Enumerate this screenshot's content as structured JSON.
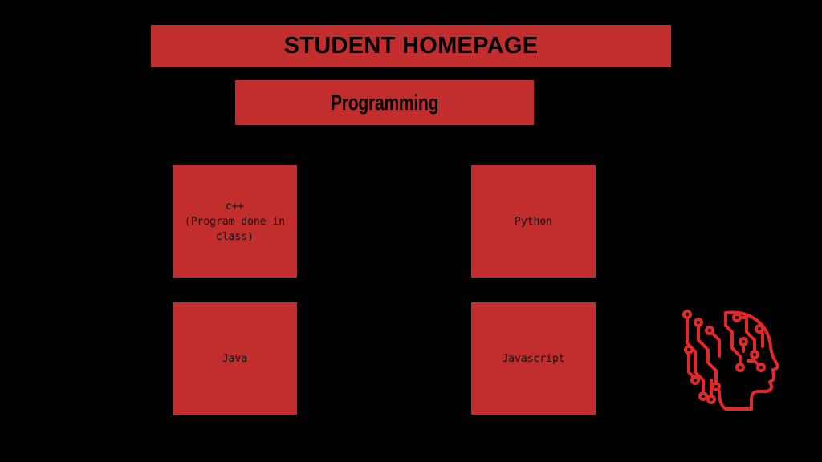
{
  "header": {
    "title": "STUDENT HOMEPAGE",
    "subtitle": "Programming"
  },
  "cards": [
    {
      "label": "c++\n(Program done in\nclass)"
    },
    {
      "label": "Python"
    },
    {
      "label": "Java"
    },
    {
      "label": "Javascript"
    }
  ],
  "icons": {
    "logo": "ai-head-circuit-icon"
  },
  "colors": {
    "background": "#000000",
    "accent": "#c22d2d",
    "icon": "#e02a2a"
  }
}
